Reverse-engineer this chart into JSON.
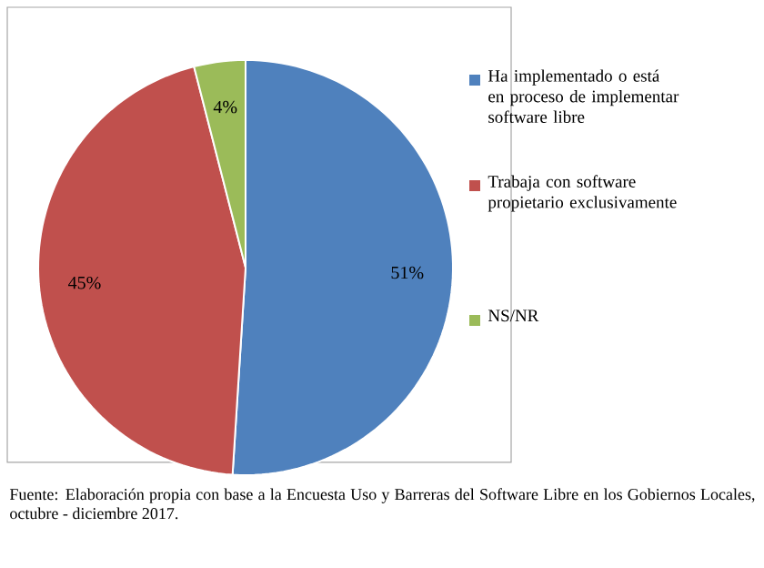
{
  "chart_data": {
    "type": "pie",
    "categories": [
      "Ha implementado o está en proceso de implementar software libre",
      "Trabaja con software propietario exclusivamente",
      "NS/NR"
    ],
    "values": [
      51,
      45,
      4
    ],
    "colors": [
      "#4f81bd",
      "#c0504d",
      "#9bbb59"
    ],
    "value_labels": [
      "51%",
      "45%",
      "4%"
    ],
    "legend": "right",
    "annotations": [
      "Fuente: Elaboración propia con base a la Encuesta Uso y Barreras del Software Libre en los Gobiernos Locales, octubre - diciembre 2017."
    ]
  }
}
